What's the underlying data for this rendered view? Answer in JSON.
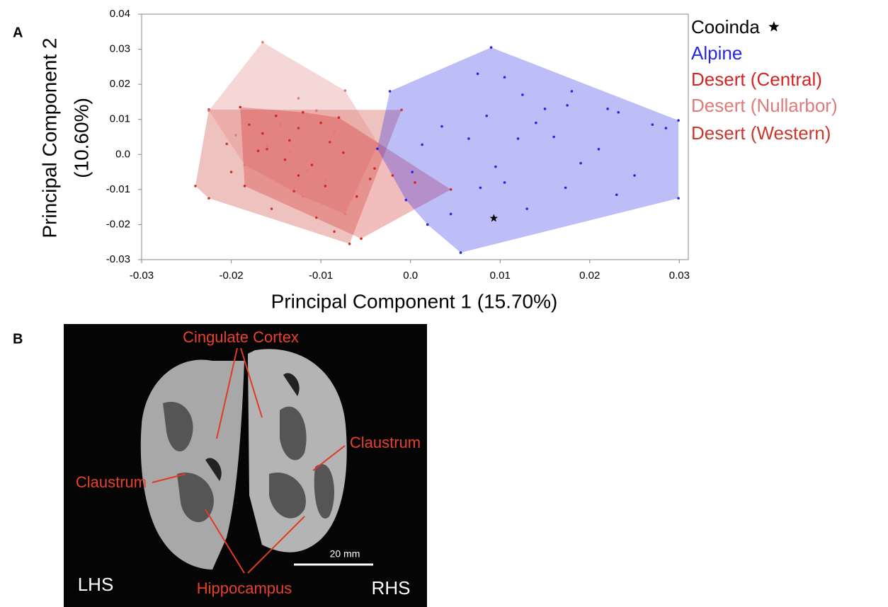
{
  "chart_data": {
    "type": "scatter",
    "panel_label": "A",
    "xlabel": "Principal Component 1 (15.70%)",
    "ylabel": [
      "Principal Component 2",
      "(10.60%)"
    ],
    "xlim": [
      -0.03,
      0.031
    ],
    "ylim": [
      -0.03,
      0.04
    ],
    "xticks": [
      -0.03,
      -0.02,
      -0.01,
      {
        "value": 0,
        "label": "0.0"
      },
      0.01,
      0.02,
      0.03
    ],
    "yticks": [
      -0.03,
      -0.02,
      -0.01,
      {
        "value": 0,
        "label": "0.0"
      },
      0.01,
      0.02,
      0.03,
      0.04
    ],
    "series": [
      {
        "name": "Cooinda",
        "color": "#000000",
        "marker": "star",
        "x": [
          0.0093
        ],
        "values": [
          -0.0182
        ]
      },
      {
        "name": "Alpine",
        "color": "#2626e6",
        "marker": "dot",
        "x": [
          0.009,
          -0.0023,
          -0.0037,
          0.0019,
          0.0056,
          0.0299,
          0.0299,
          0.0075,
          0.0105,
          0.0125,
          0.015,
          0.018,
          0.0175,
          0.022,
          0.0232,
          0.027,
          0.0285,
          0.0085,
          0.0065,
          0.0035,
          0.0013,
          0.012,
          0.014,
          0.016,
          0.019,
          0.021,
          0.025,
          0.0105,
          0.0078,
          0.0095,
          0.0002,
          -0.0005,
          0.0173,
          0.013,
          0.0045,
          0.023
        ],
        "values": [
          0.0305,
          0.018,
          0.0016,
          -0.02,
          -0.028,
          -0.0125,
          0.0097,
          0.023,
          0.022,
          0.017,
          0.013,
          0.018,
          0.014,
          0.013,
          0.012,
          0.0085,
          0.0075,
          0.011,
          0.0045,
          0.008,
          0.0028,
          0.0045,
          0.009,
          0.005,
          -0.0025,
          0.0015,
          -0.006,
          -0.008,
          -0.0095,
          -0.0035,
          -0.005,
          -0.013,
          -0.0095,
          -0.0155,
          -0.017,
          -0.0115
        ]
      },
      {
        "name": "Desert (Central)",
        "color": "#d42424",
        "marker": "dot",
        "x": [
          -0.019,
          -0.008,
          0.0045,
          -0.0055,
          -0.0185,
          -0.015,
          -0.012,
          -0.01,
          -0.0135,
          -0.0165,
          -0.0075,
          -0.004,
          -0.002,
          -0.011,
          -0.014,
          -0.0095,
          -0.006,
          -0.017,
          -0.0125,
          0.0005
        ],
        "values": [
          0.0135,
          0.0105,
          -0.01,
          -0.024,
          -0.009,
          0.011,
          0.012,
          0.009,
          0.004,
          0.006,
          0.0005,
          -0.004,
          -0.006,
          -0.003,
          -0.0015,
          -0.009,
          -0.012,
          0.001,
          -0.006,
          -0.008
        ]
      },
      {
        "name": "Desert (Nullarbor)",
        "color": "#e07a7a",
        "marker": "dot",
        "x": [
          -0.0165,
          -0.0073,
          -0.0036,
          -0.0073,
          -0.012,
          -0.0185,
          -0.0225,
          -0.0125,
          -0.0145,
          -0.0105,
          -0.016,
          -0.0085,
          -0.0115,
          -0.0195,
          -0.0135,
          -0.0095
        ],
        "values": [
          0.032,
          0.0182,
          0.003,
          -0.017,
          -0.012,
          -0.003,
          0.0125,
          0.016,
          0.0085,
          0.0125,
          0.0025,
          0.0065,
          -0.0045,
          0.0055,
          0.0005,
          -0.0075
        ]
      },
      {
        "name": "Desert (Western)",
        "color": "#c8382c",
        "marker": "dot",
        "x": [
          -0.024,
          -0.0225,
          -0.001,
          -0.0045,
          -0.0068,
          -0.0225,
          -0.0205,
          -0.018,
          -0.0155,
          -0.013,
          -0.0105,
          -0.0085,
          -0.016,
          -0.02,
          -0.009,
          -0.0125
        ],
        "values": [
          -0.009,
          0.0128,
          0.0127,
          -0.007,
          -0.0255,
          -0.0125,
          0.003,
          0.0085,
          -0.0155,
          -0.0105,
          -0.018,
          -0.022,
          0.0015,
          -0.005,
          0.0035,
          0.0075
        ]
      }
    ]
  },
  "panel_b": {
    "panel_label": "B",
    "cingulate_cortex": "Cingulate Cortex",
    "claustrum_right": "Claustrum",
    "claustrum_left": "Claustrum",
    "hippocampus": "Hippocampus",
    "lhs": "LHS",
    "rhs": "RHS",
    "scale_bar": "20 mm"
  }
}
